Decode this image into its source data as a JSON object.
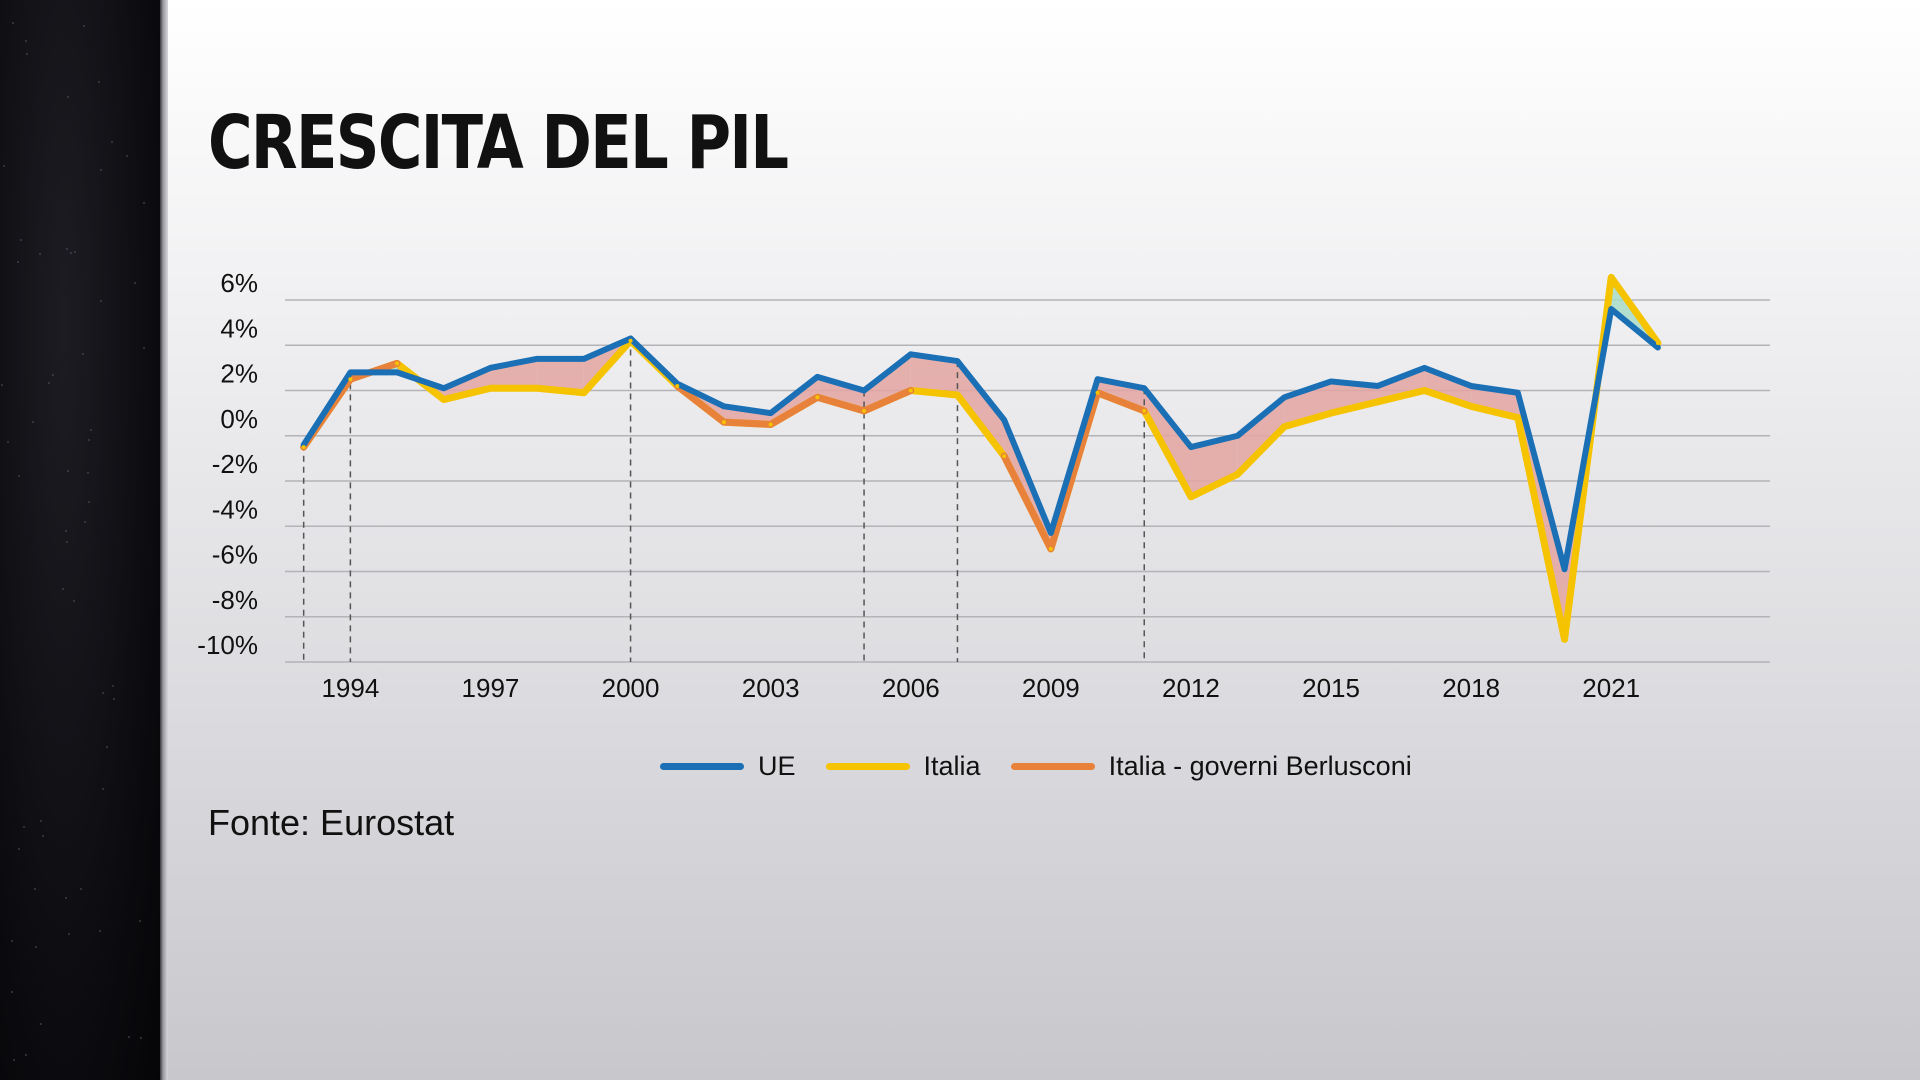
{
  "title": "CRESCITA DEL PIL",
  "source": "Fonte: Eurostat",
  "colors": {
    "ue": "#1a6fb5",
    "italia": "#f5c300",
    "berlusconi": "#e8823a",
    "gap_negative": "#e3a4a0",
    "gap_positive": "#a8dcc8",
    "grid": "#b4b4b8",
    "guide": "#555555"
  },
  "legend": [
    {
      "label": "UE",
      "color": "#1a6fb5"
    },
    {
      "label": "Italia",
      "color": "#f5c300"
    },
    {
      "label": "Italia - governi Berlusconi",
      "color": "#e8823a"
    }
  ],
  "chart_data": {
    "type": "line",
    "title": "CRESCITA DEL PIL",
    "xlabel": "",
    "ylabel": "",
    "ylim": [
      -10,
      6
    ],
    "xlim": [
      1992.6,
      2024.4
    ],
    "y_ticks": [
      6,
      4,
      2,
      0,
      -2,
      -4,
      -6,
      -8,
      -10
    ],
    "y_tick_labels": [
      "6%",
      "4%",
      "2%",
      "0%",
      "-2%",
      "-4%",
      "-6%",
      "-8%",
      "-10%"
    ],
    "x_ticks": [
      1994,
      1997,
      2000,
      2003,
      2006,
      2009,
      2012,
      2015,
      2018,
      2021
    ],
    "x_tick_labels": [
      "1994",
      "1997",
      "2000",
      "2003",
      "2006",
      "2009",
      "2012",
      "2015",
      "2018",
      "2021"
    ],
    "x": [
      1993,
      1994,
      1995,
      1996,
      1997,
      1998,
      1999,
      2000,
      2001,
      2002,
      2003,
      2004,
      2005,
      2006,
      2007,
      2008,
      2009,
      2010,
      2011,
      2012,
      2013,
      2014,
      2015,
      2016,
      2017,
      2018,
      2019,
      2020,
      2021,
      2022,
      2023
    ],
    "series": [
      {
        "name": "UE",
        "values": [
          -0.4,
          2.8,
          2.8,
          2.1,
          3.0,
          3.4,
          3.4,
          4.3,
          2.3,
          1.3,
          1.0,
          2.6,
          2.0,
          3.6,
          3.3,
          0.7,
          -4.3,
          2.5,
          2.1,
          -0.5,
          0.0,
          1.7,
          2.4,
          2.2,
          3.0,
          2.2,
          1.9,
          -5.9,
          5.6,
          3.9,
          null
        ]
      },
      {
        "name": "Italia",
        "values": [
          -0.5,
          2.5,
          3.2,
          1.6,
          2.1,
          2.1,
          1.9,
          4.2,
          2.2,
          0.6,
          0.5,
          1.7,
          1.1,
          2.0,
          1.8,
          -0.9,
          -5.0,
          1.9,
          1.1,
          -2.7,
          -1.7,
          0.4,
          1.0,
          1.5,
          2.0,
          1.3,
          0.8,
          -9.0,
          7.0,
          4.1,
          null
        ]
      }
    ],
    "berlusconi_periods": [
      [
        1994,
        1995
      ],
      [
        2001,
        2006
      ],
      [
        2008,
        2011
      ]
    ],
    "guide_years": [
      1993,
      1994,
      2000,
      2005,
      2007,
      2011
    ],
    "annotations": []
  }
}
